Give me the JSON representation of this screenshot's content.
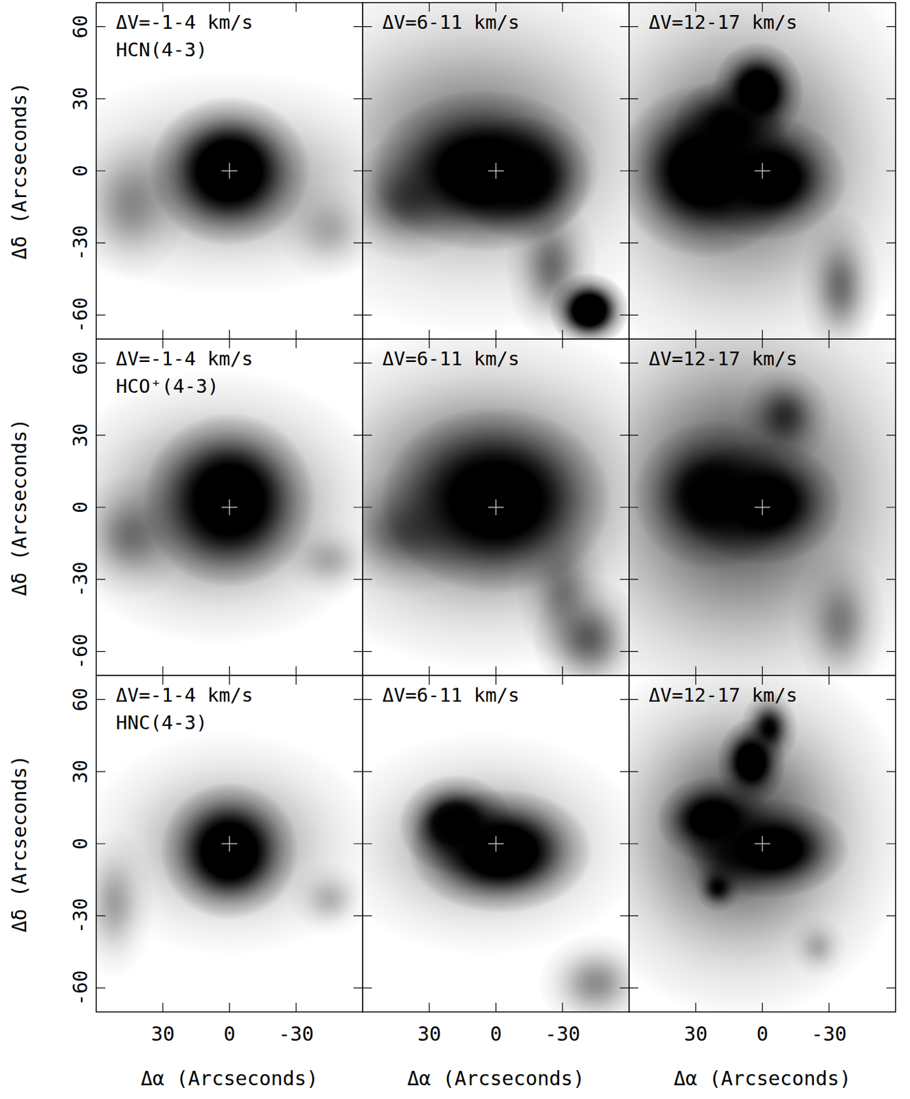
{
  "chart_data": [
    {
      "type": "channel_map",
      "title": "ΔV=-1-4 km/s",
      "subtitle": "HCN(4-3)",
      "ylabel": "Δδ (Arcseconds)",
      "tick_labels": "y",
      "marker": "cross",
      "center": {
        "x": 0,
        "y": 0
      },
      "xlim": [
        60,
        -60
      ],
      "ylim": [
        -70,
        70
      ],
      "xticks": [
        30,
        0,
        -30
      ],
      "yticks": [
        -60,
        -30,
        0,
        30,
        60
      ],
      "blobs": [
        {
          "x": 0,
          "y": -5,
          "sx": 35,
          "sy": 18,
          "peak": 0.25
        },
        {
          "x": 0,
          "y": 0,
          "sx": 14,
          "sy": 12,
          "peak": 1
        },
        {
          "x": 45,
          "y": -15,
          "sx": 10,
          "sy": 12,
          "peak": 0.2
        },
        {
          "x": -45,
          "y": -25,
          "sx": 9,
          "sy": 8,
          "peak": 0.15
        }
      ]
    },
    {
      "type": "channel_map",
      "title": "ΔV=6-11 km/s",
      "tick_labels": false,
      "marker": "cross",
      "center": {
        "x": 0,
        "y": 0
      },
      "xlim": [
        60,
        -60
      ],
      "ylim": [
        -70,
        70
      ],
      "xticks": [
        30,
        0,
        -30
      ],
      "yticks": [
        -60,
        -30,
        0,
        30,
        60
      ],
      "blobs": [
        {
          "x": 10,
          "y": 10,
          "sx": 40,
          "sy": 30,
          "peak": 0.3
        },
        {
          "x": 5,
          "y": 0,
          "sx": 20,
          "sy": 13,
          "peak": 1
        },
        {
          "x": -12,
          "y": -3,
          "sx": 12,
          "sy": 10,
          "peak": 0.9
        },
        {
          "x": 40,
          "y": -12,
          "sx": 12,
          "sy": 10,
          "peak": 0.35
        },
        {
          "x": -25,
          "y": -40,
          "sx": 8,
          "sy": 12,
          "peak": 0.3
        },
        {
          "x": -42,
          "y": -58,
          "sx": 7,
          "sy": 6,
          "peak": 1
        }
      ]
    },
    {
      "type": "channel_map",
      "title": "ΔV=12-17 km/s",
      "tick_labels": false,
      "marker": "cross",
      "center": {
        "x": 0,
        "y": 0
      },
      "xlim": [
        60,
        -60
      ],
      "ylim": [
        -70,
        70
      ],
      "xticks": [
        30,
        0,
        -30
      ],
      "yticks": [
        -60,
        -30,
        0,
        30,
        60
      ],
      "blobs": [
        {
          "x": 10,
          "y": 5,
          "sx": 35,
          "sy": 35,
          "peak": 0.35
        },
        {
          "x": -2,
          "y": -3,
          "sx": 14,
          "sy": 10,
          "peak": 1
        },
        {
          "x": 25,
          "y": 0,
          "sx": 16,
          "sy": 14,
          "peak": 1
        },
        {
          "x": 15,
          "y": 18,
          "sx": 10,
          "sy": 8,
          "peak": 0.8
        },
        {
          "x": 2,
          "y": 33,
          "sx": 8,
          "sy": 8,
          "peak": 1
        },
        {
          "x": -35,
          "y": -48,
          "sx": 7,
          "sy": 12,
          "peak": 0.3
        }
      ]
    },
    {
      "type": "channel_map",
      "title": "ΔV=-1-4 km/s",
      "subtitle": "HCO⁺(4-3)",
      "ylabel": "Δδ (Arcseconds)",
      "tick_labels": "y",
      "marker": "cross",
      "center": {
        "x": 0,
        "y": 0
      },
      "xlim": [
        60,
        -60
      ],
      "ylim": [
        -70,
        70
      ],
      "xticks": [
        30,
        0,
        -30
      ],
      "yticks": [
        -60,
        -30,
        0,
        30,
        60
      ],
      "blobs": [
        {
          "x": 5,
          "y": 0,
          "sx": 30,
          "sy": 22,
          "peak": 0.35
        },
        {
          "x": 0,
          "y": 3,
          "sx": 15,
          "sy": 14,
          "peak": 1
        },
        {
          "x": 45,
          "y": -12,
          "sx": 10,
          "sy": 10,
          "peak": 0.25
        },
        {
          "x": -45,
          "y": -22,
          "sx": 8,
          "sy": 6,
          "peak": 0.15
        }
      ]
    },
    {
      "type": "channel_map",
      "title": "ΔV=6-11 km/s",
      "tick_labels": false,
      "marker": "cross",
      "center": {
        "x": 0,
        "y": 0
      },
      "xlim": [
        60,
        -60
      ],
      "ylim": [
        -70,
        70
      ],
      "xticks": [
        30,
        0,
        -30
      ],
      "yticks": [
        -60,
        -30,
        0,
        30,
        60
      ],
      "blobs": [
        {
          "x": 5,
          "y": 5,
          "sx": 38,
          "sy": 28,
          "peak": 0.4
        },
        {
          "x": 0,
          "y": 3,
          "sx": 20,
          "sy": 15,
          "peak": 1
        },
        {
          "x": 40,
          "y": -10,
          "sx": 14,
          "sy": 10,
          "peak": 0.3
        },
        {
          "x": -30,
          "y": -35,
          "sx": 8,
          "sy": 12,
          "peak": 0.25
        },
        {
          "x": -42,
          "y": -55,
          "sx": 10,
          "sy": 10,
          "peak": 0.35
        }
      ]
    },
    {
      "type": "channel_map",
      "title": "ΔV=12-17 km/s",
      "tick_labels": false,
      "marker": "cross",
      "center": {
        "x": 0,
        "y": 0
      },
      "xlim": [
        60,
        -60
      ],
      "ylim": [
        -70,
        70
      ],
      "xticks": [
        30,
        0,
        -30
      ],
      "yticks": [
        -60,
        -30,
        0,
        30,
        60
      ],
      "blobs": [
        {
          "x": 10,
          "y": 5,
          "sx": 38,
          "sy": 38,
          "peak": 0.4
        },
        {
          "x": 0,
          "y": 2,
          "sx": 14,
          "sy": 10,
          "peak": 1
        },
        {
          "x": 22,
          "y": 5,
          "sx": 14,
          "sy": 12,
          "peak": 0.85
        },
        {
          "x": -10,
          "y": 38,
          "sx": 8,
          "sy": 8,
          "peak": 0.4
        },
        {
          "x": -35,
          "y": -48,
          "sx": 8,
          "sy": 12,
          "peak": 0.25
        }
      ]
    },
    {
      "type": "channel_map",
      "title": "ΔV=-1-4 km/s",
      "subtitle": "HNC(4-3)",
      "xlabel": "Δα (Arcseconds)",
      "ylabel": "Δδ (Arcseconds)",
      "tick_labels": true,
      "marker": "cross",
      "center": {
        "x": 0,
        "y": 0
      },
      "xlim": [
        60,
        -60
      ],
      "ylim": [
        -70,
        70
      ],
      "xticks": [
        30,
        0,
        -30
      ],
      "yticks": [
        -60,
        -30,
        0,
        30,
        60
      ],
      "blobs": [
        {
          "x": 0,
          "y": 0,
          "sx": 26,
          "sy": 18,
          "peak": 0.25
        },
        {
          "x": 0,
          "y": -3,
          "sx": 12,
          "sy": 11,
          "peak": 1
        },
        {
          "x": 52,
          "y": -25,
          "sx": 7,
          "sy": 12,
          "peak": 0.2
        },
        {
          "x": -45,
          "y": -23,
          "sx": 7,
          "sy": 6,
          "peak": 0.15
        }
      ]
    },
    {
      "type": "channel_map",
      "title": "ΔV=6-11 km/s",
      "xlabel": "Δα (Arcseconds)",
      "tick_labels": "x",
      "marker": "cross",
      "center": {
        "x": 0,
        "y": 0
      },
      "xlim": [
        60,
        -60
      ],
      "ylim": [
        -70,
        70
      ],
      "xticks": [
        30,
        0,
        -30
      ],
      "yticks": [
        -60,
        -30,
        0,
        30,
        60
      ],
      "blobs": [
        {
          "x": 5,
          "y": 0,
          "sx": 28,
          "sy": 18,
          "peak": 0.25
        },
        {
          "x": -2,
          "y": -3,
          "sx": 16,
          "sy": 10,
          "peak": 1
        },
        {
          "x": 18,
          "y": 8,
          "sx": 10,
          "sy": 8,
          "peak": 0.9
        },
        {
          "x": -45,
          "y": -58,
          "sx": 10,
          "sy": 8,
          "peak": 0.25
        }
      ]
    },
    {
      "type": "channel_map",
      "title": "ΔV=12-17 km/s",
      "xlabel": "Δα (Arcseconds)",
      "tick_labels": "x",
      "marker": "cross",
      "center": {
        "x": 0,
        "y": 0
      },
      "xlim": [
        60,
        -60
      ],
      "ylim": [
        -70,
        70
      ],
      "xticks": [
        30,
        0,
        -30
      ],
      "yticks": [
        -60,
        -30,
        0,
        30,
        60
      ],
      "blobs": [
        {
          "x": 10,
          "y": 5,
          "sx": 30,
          "sy": 30,
          "peak": 0.4
        },
        {
          "x": -3,
          "y": -2,
          "sx": 14,
          "sy": 8,
          "peak": 1
        },
        {
          "x": 22,
          "y": 10,
          "sx": 10,
          "sy": 7,
          "peak": 1
        },
        {
          "x": 15,
          "y": -5,
          "sx": 8,
          "sy": 8,
          "peak": 0.4
        },
        {
          "x": 5,
          "y": 34,
          "sx": 6,
          "sy": 7,
          "peak": 1
        },
        {
          "x": -3,
          "y": 48,
          "sx": 5,
          "sy": 6,
          "peak": 0.6
        },
        {
          "x": 20,
          "y": -18,
          "sx": 4,
          "sy": 4,
          "peak": 0.6
        },
        {
          "x": -25,
          "y": -43,
          "sx": 5,
          "sy": 5,
          "peak": 0.15
        }
      ]
    }
  ]
}
